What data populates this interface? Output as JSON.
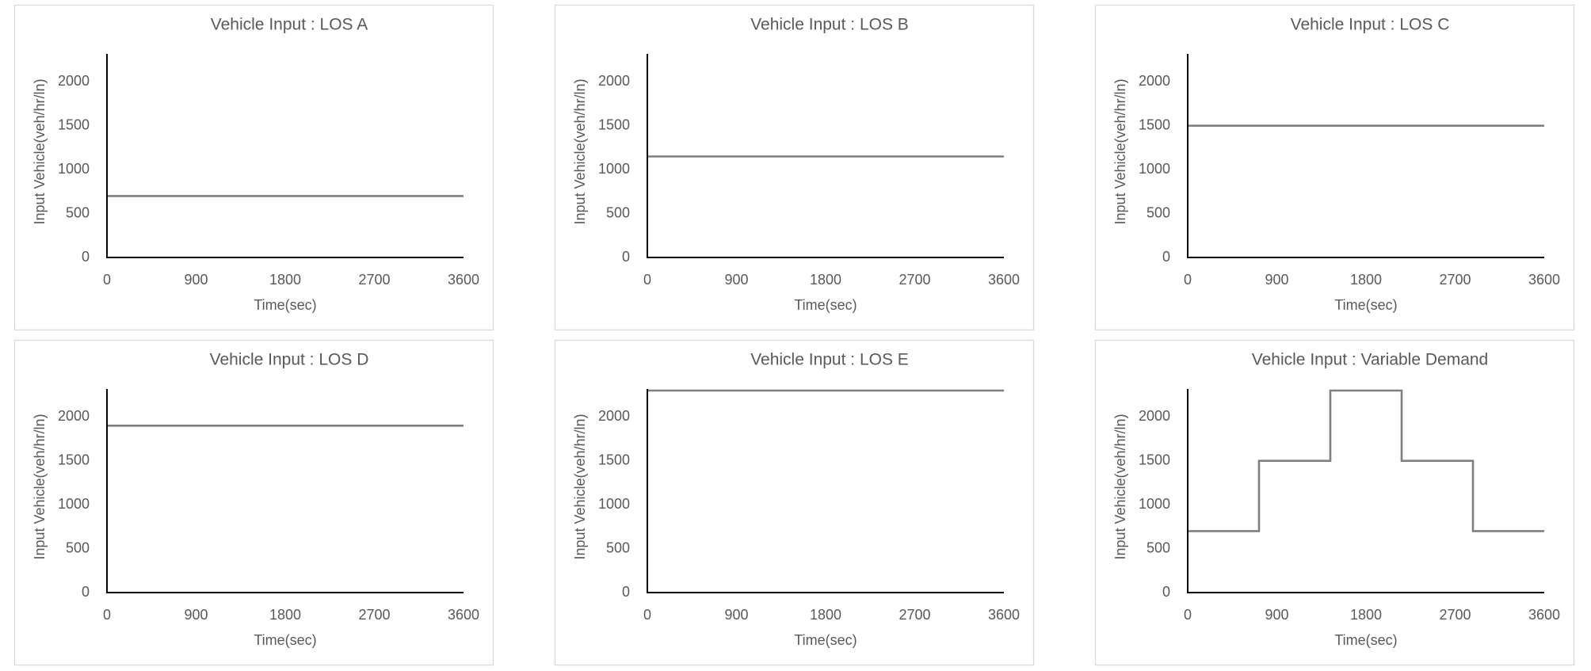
{
  "chart_data": [
    {
      "type": "line",
      "title": "Vehicle Input : LOS A",
      "x_label": "Time(sec)",
      "y_label": "Input Vehicle(veh/hr/ln)",
      "x": [
        0,
        3600
      ],
      "values": [
        700,
        700
      ],
      "color": "#7f7f7f",
      "xlim": [
        0,
        3600
      ],
      "xticks": [
        0,
        900,
        1800,
        2700,
        3600
      ],
      "ylim": [
        0,
        2300
      ],
      "yticks": [
        0,
        500,
        1000,
        1500,
        2000
      ]
    },
    {
      "type": "line",
      "title": "Vehicle Input : LOS B",
      "x_label": "Time(sec)",
      "y_label": "Input Vehicle(veh/hr/ln)",
      "x": [
        0,
        3600
      ],
      "values": [
        1150,
        1150
      ],
      "color": "#7f7f7f",
      "xlim": [
        0,
        3600
      ],
      "xticks": [
        0,
        900,
        1800,
        2700,
        3600
      ],
      "ylim": [
        0,
        2300
      ],
      "yticks": [
        0,
        500,
        1000,
        1500,
        2000
      ]
    },
    {
      "type": "line",
      "title": "Vehicle Input : LOS C",
      "x_label": "Time(sec)",
      "y_label": "Input Vehicle(veh/hr/ln)",
      "x": [
        0,
        3600
      ],
      "values": [
        1500,
        1500
      ],
      "color": "#7f7f7f",
      "xlim": [
        0,
        3600
      ],
      "xticks": [
        0,
        900,
        1800,
        2700,
        3600
      ],
      "ylim": [
        0,
        2300
      ],
      "yticks": [
        0,
        500,
        1000,
        1500,
        2000
      ]
    },
    {
      "type": "line",
      "title": "Vehicle Input : LOS D",
      "x_label": "Time(sec)",
      "y_label": "Input Vehicle(veh/hr/ln)",
      "x": [
        0,
        3600
      ],
      "values": [
        1900,
        1900
      ],
      "color": "#7f7f7f",
      "xlim": [
        0,
        3600
      ],
      "xticks": [
        0,
        900,
        1800,
        2700,
        3600
      ],
      "ylim": [
        0,
        2300
      ],
      "yticks": [
        0,
        500,
        1000,
        1500,
        2000
      ]
    },
    {
      "type": "line",
      "title": "Vehicle Input : LOS E",
      "x_label": "Time(sec)",
      "y_label": "Input Vehicle(veh/hr/ln)",
      "x": [
        0,
        3600
      ],
      "values": [
        2300,
        2300
      ],
      "color": "#7f7f7f",
      "xlim": [
        0,
        3600
      ],
      "xticks": [
        0,
        900,
        1800,
        2700,
        3600
      ],
      "ylim": [
        0,
        2300
      ],
      "yticks": [
        0,
        500,
        1000,
        1500,
        2000
      ]
    },
    {
      "type": "line",
      "title": "Vehicle Input : Variable Demand",
      "x_label": "Time(sec)",
      "y_label": "Input Vehicle(veh/hr/ln)",
      "x": [
        0,
        720,
        720,
        1440,
        1440,
        2160,
        2160,
        2880,
        2880,
        3600
      ],
      "values": [
        700,
        700,
        1500,
        1500,
        2300,
        2300,
        1500,
        1500,
        700,
        700
      ],
      "color": "#7f7f7f",
      "xlim": [
        0,
        3600
      ],
      "xticks": [
        0,
        900,
        1800,
        2700,
        3600
      ],
      "ylim": [
        0,
        2300
      ],
      "yticks": [
        0,
        500,
        1000,
        1500,
        2000
      ]
    }
  ]
}
